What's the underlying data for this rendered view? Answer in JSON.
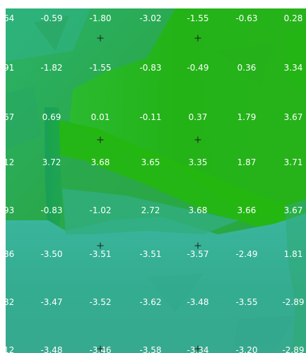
{
  "map": {
    "colors": {
      "background_white": "#ffffff",
      "bright_green": "#22b411",
      "green": "#3aa72c",
      "teal": "#33ae8c",
      "light_teal": "#3fb39a",
      "label_white": "#ffffff",
      "marker_black": "#1b1b1b"
    },
    "grid_rows": [
      [
        "64",
        "-0.59",
        "-1.80",
        "-3.02",
        "-1.55",
        "-0.63",
        "0.28"
      ],
      [
        "91",
        "-1.82",
        "-1.55",
        "-0.83",
        "-0.49",
        "0.36",
        "3.34"
      ],
      [
        "67",
        "0.69",
        "0.01",
        "-0.11",
        "0.37",
        "1.79",
        "3.67"
      ],
      [
        "12",
        "3.72",
        "3.68",
        "3.65",
        "3.35",
        "1.87",
        "3.71"
      ],
      [
        "93",
        "-0.83",
        "-1.02",
        "2.72",
        "3.68",
        "3.66",
        "3.67"
      ],
      [
        "86",
        "-3.50",
        "-3.51",
        "-3.51",
        "-3.57",
        "-2.49",
        "1.81"
      ],
      [
        "82",
        "-3.47",
        "-3.52",
        "-3.62",
        "-3.48",
        "-3.55",
        "-2.89"
      ],
      [
        "12",
        "-3.48",
        "-3.46",
        "-3.58",
        "-3.34",
        "-3.20",
        "-2.89"
      ]
    ],
    "markers": [
      {
        "name": "marker-r1-c2"
      },
      {
        "name": "marker-r1-c4"
      },
      {
        "name": "marker-r3-c2"
      },
      {
        "name": "marker-r3-c4"
      },
      {
        "name": "marker-r5-c2"
      },
      {
        "name": "marker-r5-c4"
      },
      {
        "name": "marker-r7-c2"
      },
      {
        "name": "marker-r7-c4"
      }
    ]
  }
}
